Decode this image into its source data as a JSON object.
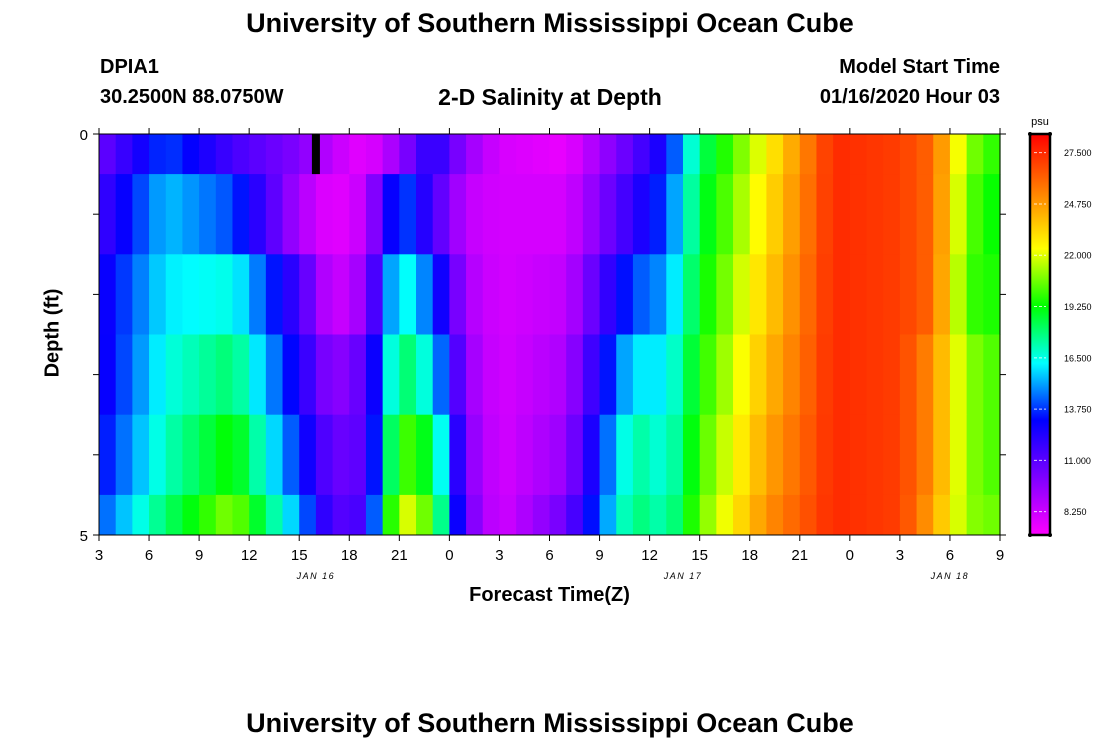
{
  "header": {
    "title": "University of Southern Mississippi Ocean Cube",
    "station_id": "DPIA1",
    "coordinates": "30.2500N 88.0750W",
    "plot_title": "2-D Salinity at Depth",
    "model_label": "Model Start Time",
    "model_start": "01/16/2020 Hour 03"
  },
  "footer": {
    "title": "University of Southern Mississippi Ocean Cube"
  },
  "colors": {
    "frame": "#000000",
    "marker": "#000000",
    "colormap": [
      "#ff00ff",
      "#7f00ff",
      "#0000ff",
      "#00ffff",
      "#00ff00",
      "#ffff00",
      "#ff7f00",
      "#ff0000"
    ]
  },
  "chart_data": {
    "type": "heatmap",
    "title": "2-D Salinity at Depth",
    "xlabel": "Forecast Time(Z)",
    "ylabel": "Depth (ft)",
    "x_tick_labels": [
      "3",
      "6",
      "9",
      "12",
      "15",
      "18",
      "21",
      "0",
      "3",
      "6",
      "9",
      "12",
      "15",
      "18",
      "21",
      "0",
      "3",
      "6",
      "9"
    ],
    "date_labels": [
      {
        "label": "JAN 16",
        "at_hour": 13
      },
      {
        "label": "JAN 17",
        "at_hour": 35
      },
      {
        "label": "JAN 18",
        "at_hour": 51
      }
    ],
    "x_range_hours": [
      0,
      54
    ],
    "x_tick_interval_hours": 3,
    "ylim": [
      0,
      5
    ],
    "y_tick_labels": [
      "0",
      "5"
    ],
    "y_ticks": [
      0,
      1,
      2,
      3,
      4,
      5
    ],
    "depth_layers": [
      0,
      1,
      2,
      3,
      4,
      5
    ],
    "time_points_hours": [
      0,
      4,
      8,
      12,
      14,
      16,
      18,
      20,
      22,
      24,
      28,
      32,
      34,
      36,
      40,
      44,
      48,
      50,
      52,
      54
    ],
    "layers_salinity": [
      [
        10.5,
        14.0,
        11.5,
        10.0,
        8.5,
        7.5,
        9.5,
        12.5,
        9.5,
        8.0,
        7.5,
        11.0,
        13.0,
        18.0,
        22.5,
        27.5,
        27.0,
        26.0,
        21.0,
        19.5
      ],
      [
        11.5,
        15.5,
        14.0,
        9.0,
        7.5,
        8.5,
        14.5,
        11.5,
        8.5,
        8.0,
        8.0,
        12.0,
        14.0,
        18.5,
        23.0,
        27.5,
        27.0,
        26.0,
        20.5,
        19.0
      ],
      [
        12.5,
        16.0,
        16.5,
        11.5,
        8.0,
        9.5,
        17.0,
        14.0,
        9.0,
        8.0,
        8.5,
        14.0,
        15.0,
        19.0,
        23.5,
        27.5,
        27.0,
        26.0,
        20.0,
        19.5
      ],
      [
        12.5,
        16.5,
        18.0,
        12.5,
        9.5,
        11.0,
        18.5,
        16.0,
        9.5,
        8.0,
        9.0,
        16.0,
        16.0,
        19.5,
        24.0,
        27.5,
        27.0,
        25.0,
        21.0,
        20.0
      ],
      [
        13.0,
        17.0,
        19.5,
        13.5,
        10.5,
        11.0,
        20.5,
        18.5,
        10.0,
        8.0,
        9.5,
        17.5,
        16.5,
        20.0,
        24.5,
        27.5,
        27.0,
        25.0,
        21.0,
        20.0
      ],
      [
        14.0,
        18.0,
        21.0,
        15.0,
        11.0,
        11.5,
        22.5,
        20.0,
        10.5,
        8.0,
        10.5,
        18.0,
        17.0,
        20.5,
        25.0,
        27.5,
        27.0,
        24.5,
        21.0,
        20.5
      ]
    ],
    "missing_data_marker_hour": 13,
    "colorbar": {
      "unit": "psu",
      "range": [
        7,
        28.5
      ],
      "tick_values": [
        8.25,
        11.0,
        13.75,
        16.5,
        19.25,
        22.0,
        24.75,
        27.5
      ],
      "tick_labels": [
        "8.250",
        "11.000",
        "13.750",
        "16.500",
        "19.250",
        "22.000",
        "24.750",
        "27.500"
      ]
    }
  }
}
